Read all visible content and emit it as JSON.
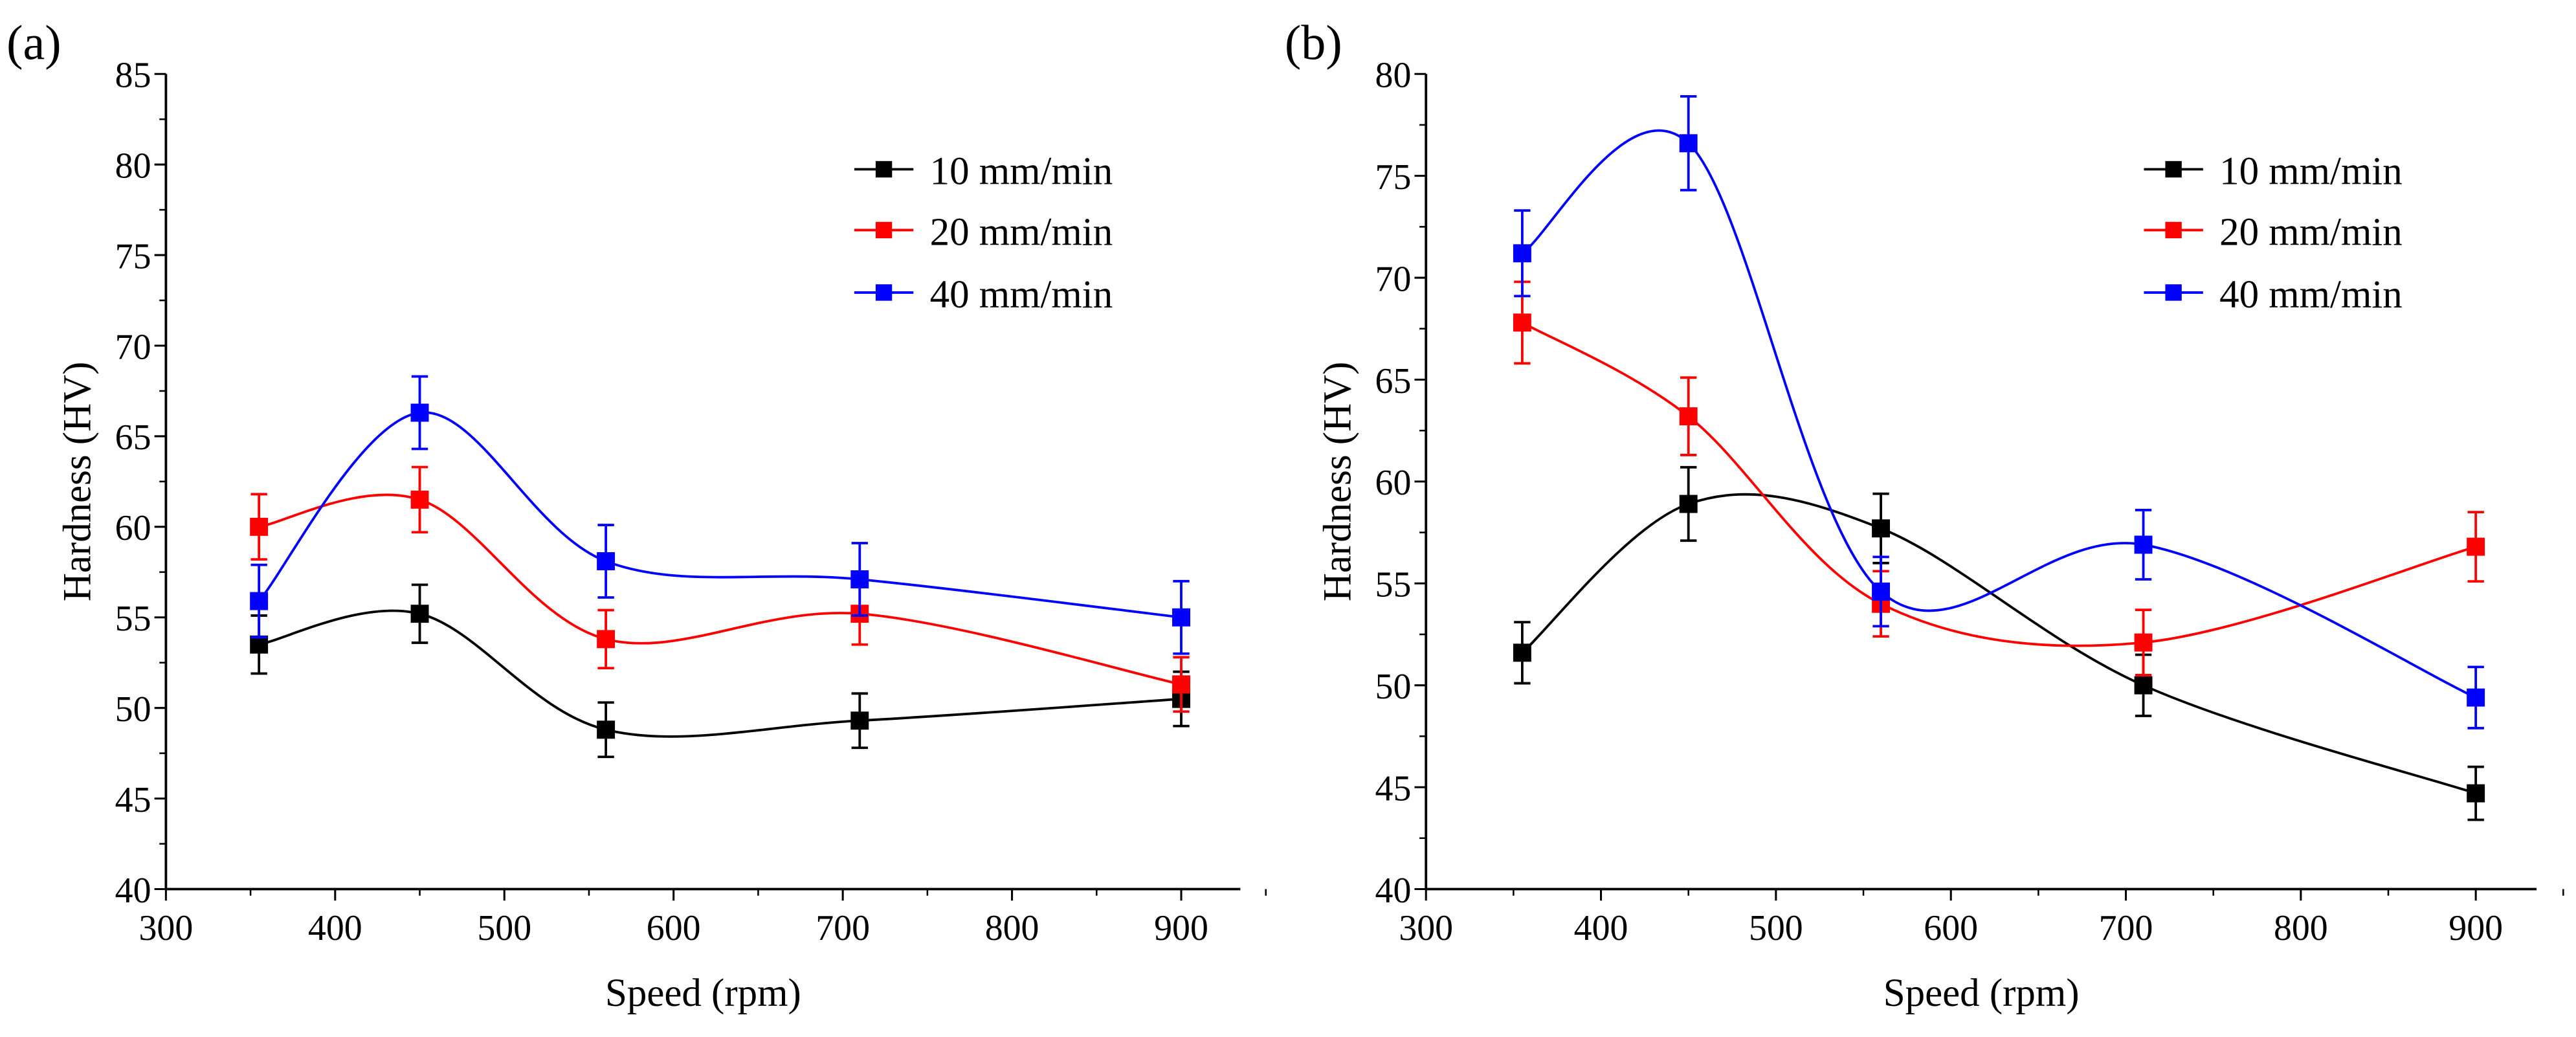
{
  "chart_data": [
    {
      "type": "line",
      "panel_label": "(a)",
      "xlabel": "Speed (rpm)",
      "ylabel": "Hardness (HV)",
      "xlim": [
        300,
        950
      ],
      "ylim": [
        40,
        85
      ],
      "xticks": [
        300,
        400,
        500,
        600,
        700,
        800,
        900
      ],
      "yticks": [
        40,
        45,
        50,
        55,
        60,
        65,
        70,
        75,
        80,
        85
      ],
      "legend_position": "top-right",
      "x": [
        355,
        450,
        560,
        710,
        900
      ],
      "series": [
        {
          "name": "10 mm/min",
          "color": "#000000",
          "values": [
            53.5,
            55.2,
            48.8,
            49.3,
            50.5
          ],
          "errors": [
            1.6,
            1.6,
            1.5,
            1.5,
            1.5
          ]
        },
        {
          "name": "20 mm/min",
          "color": "#ff0000",
          "values": [
            60.0,
            61.5,
            53.8,
            55.2,
            51.3
          ],
          "errors": [
            1.8,
            1.8,
            1.6,
            1.7,
            1.5
          ]
        },
        {
          "name": "40 mm/min",
          "color": "#0000ff",
          "values": [
            55.9,
            66.3,
            58.1,
            57.1,
            55.0
          ],
          "errors": [
            2.0,
            2.0,
            2.0,
            2.0,
            2.0
          ]
        }
      ]
    },
    {
      "type": "line",
      "panel_label": "(b)",
      "xlabel": "Speed (rpm)",
      "ylabel": "Hardness (HV)",
      "xlim": [
        300,
        950
      ],
      "ylim": [
        40,
        80
      ],
      "xticks": [
        300,
        400,
        500,
        600,
        700,
        800,
        900
      ],
      "yticks": [
        40,
        45,
        50,
        55,
        60,
        65,
        70,
        75,
        80
      ],
      "legend_position": "top-right",
      "x": [
        355,
        450,
        560,
        710,
        900
      ],
      "series": [
        {
          "name": "10 mm/min",
          "color": "#000000",
          "values": [
            51.6,
            58.9,
            57.7,
            50.0,
            44.7
          ],
          "errors": [
            1.5,
            1.8,
            1.7,
            1.5,
            1.3
          ]
        },
        {
          "name": "20 mm/min",
          "color": "#ff0000",
          "values": [
            67.8,
            63.2,
            54.0,
            52.1,
            56.8
          ],
          "errors": [
            2.0,
            1.9,
            1.6,
            1.6,
            1.7
          ]
        },
        {
          "name": "40 mm/min",
          "color": "#0000ff",
          "values": [
            71.2,
            76.6,
            54.6,
            56.9,
            49.4
          ],
          "errors": [
            2.1,
            2.3,
            1.7,
            1.7,
            1.5
          ]
        }
      ]
    }
  ]
}
